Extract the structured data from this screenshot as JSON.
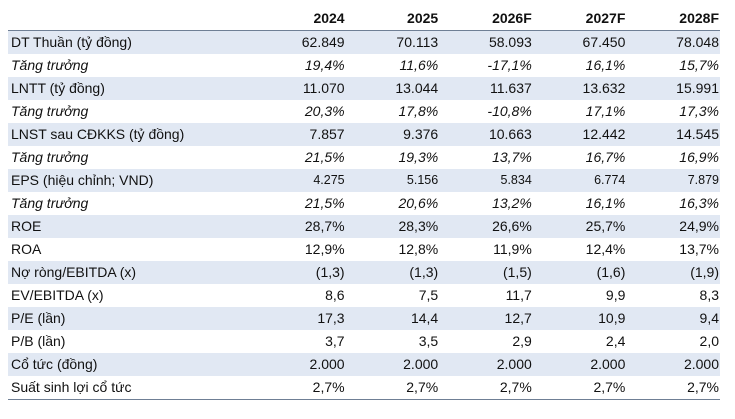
{
  "table": {
    "years": [
      "2024",
      "2025",
      "2026F",
      "2027F",
      "2028F"
    ],
    "rows": [
      {
        "label": "DT Thuần (tỷ đồng)",
        "values": [
          "62.849",
          "70.113",
          "58.093",
          "67.450",
          "78.048"
        ],
        "style": "shade"
      },
      {
        "label": "Tăng trưởng",
        "values": [
          "19,4%",
          "11,6%",
          "-17,1%",
          "16,1%",
          "15,7%"
        ],
        "style": "growth"
      },
      {
        "label": "LNTT (tỷ đồng)",
        "values": [
          "11.070",
          "13.044",
          "11.637",
          "13.632",
          "15.991"
        ],
        "style": "shade"
      },
      {
        "label": "Tăng trưởng",
        "values": [
          "20,3%",
          "17,8%",
          "-10,8%",
          "17,1%",
          "17,3%"
        ],
        "style": "growth"
      },
      {
        "label": "LNST sau CĐKKS (tỷ đồng)",
        "values": [
          "7.857",
          "9.376",
          "10.663",
          "12.442",
          "14.545"
        ],
        "style": "shade"
      },
      {
        "label": "Tăng trưởng",
        "values": [
          "21,5%",
          "19,3%",
          "13,7%",
          "16,7%",
          "16,9%"
        ],
        "style": "growth"
      },
      {
        "label": "EPS (hiệu chỉnh; VND)",
        "values": [
          "4.275",
          "5.156",
          "5.834",
          "6.774",
          "7.879"
        ],
        "style": "shade small"
      },
      {
        "label": "Tăng trưởng",
        "values": [
          "21,5%",
          "20,6%",
          "13,2%",
          "16,1%",
          "16,3%"
        ],
        "style": "growth"
      },
      {
        "label": "ROE",
        "values": [
          "28,7%",
          "28,3%",
          "26,6%",
          "25,7%",
          "24,9%"
        ],
        "style": "shade"
      },
      {
        "label": "ROA",
        "values": [
          "12,9%",
          "12,8%",
          "11,9%",
          "12,4%",
          "13,7%"
        ],
        "style": ""
      },
      {
        "label": "Nợ ròng/EBITDA (x)",
        "values": [
          "(1,3)",
          "(1,3)",
          "(1,5)",
          "(1,6)",
          "(1,9)"
        ],
        "style": "shade"
      },
      {
        "label": "EV/EBITDA (x)",
        "values": [
          "8,6",
          "7,5",
          "11,7",
          "9,9",
          "8,3"
        ],
        "style": ""
      },
      {
        "label": "P/E (lần)",
        "values": [
          "17,3",
          "14,4",
          "12,7",
          "10,9",
          "9,4"
        ],
        "style": "shade"
      },
      {
        "label": "P/B (lần)",
        "values": [
          "3,7",
          "3,5",
          "2,9",
          "2,4",
          "2,0"
        ],
        "style": ""
      },
      {
        "label": "Cổ tức (đồng)",
        "values": [
          "2.000",
          "2.000",
          "2.000",
          "2.000",
          "2.000"
        ],
        "style": "shade"
      },
      {
        "label": "Suất sinh lợi cổ tức",
        "values": [
          "2,7%",
          "2,7%",
          "2,7%",
          "2,7%",
          "2,7%"
        ],
        "style": ""
      }
    ]
  },
  "colors": {
    "row_shade": "#e1e8f3",
    "rule": "#6f7f95",
    "text": "#111111"
  }
}
